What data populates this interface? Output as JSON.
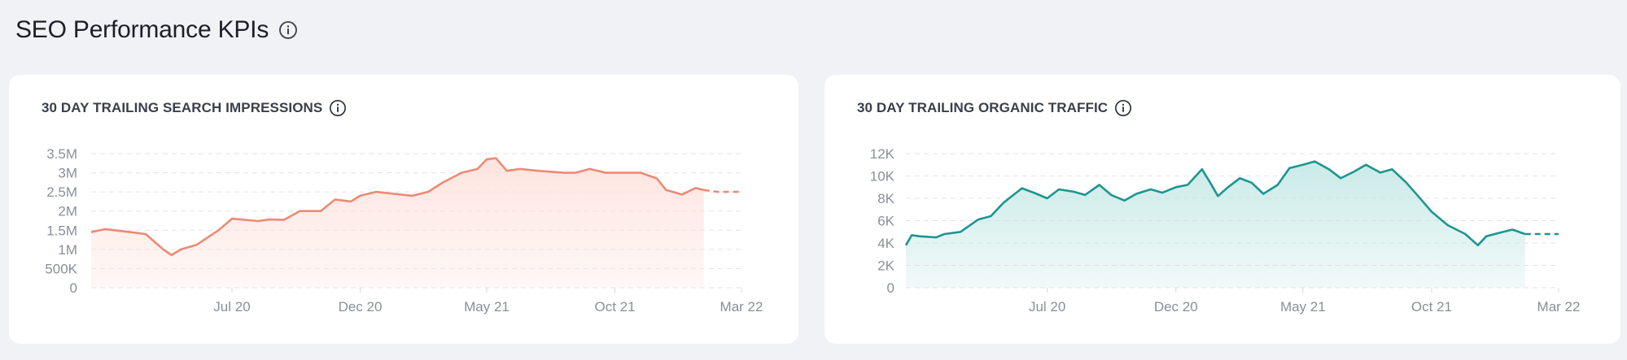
{
  "page": {
    "title": "SEO Performance KPIs",
    "info_icon": "info-icon"
  },
  "cards": [
    {
      "title": "30 DAY TRAILING SEARCH IMPRESSIONS",
      "info_icon": "info-icon"
    },
    {
      "title": "30 DAY TRAILING ORGANIC TRAFFIC",
      "info_icon": "info-icon"
    }
  ],
  "chart_data": [
    {
      "type": "area",
      "title": "30 DAY TRAILING SEARCH IMPRESSIONS",
      "color": "#ec8a76",
      "fill": "#fde3dd",
      "x_start": "2020-01-15",
      "x_end": "2022-03-01",
      "ylim": [
        0,
        3500000
      ],
      "yticks": [
        0,
        500000,
        1000000,
        1500000,
        2000000,
        2500000,
        3000000,
        3500000
      ],
      "ytick_labels": [
        "0",
        "500K",
        "1M",
        "1.5M",
        "2M",
        "2.5M",
        "3M",
        "3.5M"
      ],
      "xticks": [
        "2020-07-01",
        "2020-12-01",
        "2021-05-01",
        "2021-10-01",
        "2022-03-01"
      ],
      "xtick_labels": [
        "Jul 20",
        "Dec 20",
        "May 21",
        "Oct 21",
        "Mar 22"
      ],
      "grid": true,
      "forecast_from": "2022-01-15",
      "series": [
        {
          "x": [
            "2020-01-15",
            "2020-02-01",
            "2020-03-01",
            "2020-03-20",
            "2020-04-10",
            "2020-04-20",
            "2020-05-01",
            "2020-05-20",
            "2020-06-15",
            "2020-07-01",
            "2020-08-01",
            "2020-08-15",
            "2020-09-01",
            "2020-09-20",
            "2020-10-15",
            "2020-11-01",
            "2020-11-20",
            "2020-12-01",
            "2020-12-20",
            "2021-01-10",
            "2021-02-01",
            "2021-02-20",
            "2021-03-10",
            "2021-04-01",
            "2021-04-20",
            "2021-05-01",
            "2021-05-12",
            "2021-05-25",
            "2021-06-10",
            "2021-07-01",
            "2021-08-01",
            "2021-08-15",
            "2021-09-01",
            "2021-09-20",
            "2021-10-01",
            "2021-10-20",
            "2021-11-01",
            "2021-11-20",
            "2021-12-01",
            "2021-12-20",
            "2022-01-05",
            "2022-01-15",
            "2022-02-01",
            "2022-03-01"
          ],
          "y": [
            1450000,
            1530000,
            1450000,
            1400000,
            1000000,
            850000,
            1000000,
            1120000,
            1500000,
            1800000,
            1740000,
            1780000,
            1770000,
            2000000,
            2000000,
            2300000,
            2250000,
            2400000,
            2500000,
            2450000,
            2400000,
            2500000,
            2750000,
            3000000,
            3100000,
            3350000,
            3380000,
            3050000,
            3100000,
            3050000,
            3000000,
            3000000,
            3100000,
            3000000,
            3000000,
            3000000,
            3000000,
            2850000,
            2550000,
            2430000,
            2600000,
            2550000,
            2500000,
            2500000
          ]
        }
      ]
    },
    {
      "type": "area",
      "title": "30 DAY TRAILING ORGANIC TRAFFIC",
      "color": "#1e9591",
      "fill": "#c7e9e6",
      "x_start": "2020-01-15",
      "x_end": "2022-03-01",
      "ylim": [
        0,
        12000
      ],
      "yticks": [
        0,
        2000,
        4000,
        6000,
        8000,
        10000,
        12000
      ],
      "ytick_labels": [
        "0",
        "2K",
        "4K",
        "6K",
        "8K",
        "10K",
        "12K"
      ],
      "xticks": [
        "2020-07-01",
        "2020-12-01",
        "2021-05-01",
        "2021-10-01",
        "2022-03-01"
      ],
      "xtick_labels": [
        "Jul 20",
        "Dec 20",
        "May 21",
        "Oct 21",
        "Mar 22"
      ],
      "grid": true,
      "forecast_from": "2022-01-20",
      "series": [
        {
          "x": [
            "2020-01-15",
            "2020-01-22",
            "2020-02-01",
            "2020-02-20",
            "2020-03-01",
            "2020-03-20",
            "2020-04-10",
            "2020-04-25",
            "2020-05-10",
            "2020-06-01",
            "2020-06-15",
            "2020-07-01",
            "2020-07-15",
            "2020-08-01",
            "2020-08-15",
            "2020-09-01",
            "2020-09-15",
            "2020-10-01",
            "2020-10-15",
            "2020-11-01",
            "2020-11-15",
            "2020-12-01",
            "2020-12-15",
            "2021-01-01",
            "2021-01-10",
            "2021-01-20",
            "2021-02-01",
            "2021-02-15",
            "2021-03-01",
            "2021-03-15",
            "2021-04-01",
            "2021-04-15",
            "2021-05-01",
            "2021-05-15",
            "2021-06-01",
            "2021-06-15",
            "2021-07-01",
            "2021-07-15",
            "2021-08-01",
            "2021-08-15",
            "2021-09-01",
            "2021-09-15",
            "2021-10-01",
            "2021-10-20",
            "2021-11-10",
            "2021-11-25",
            "2021-12-05",
            "2021-12-20",
            "2022-01-05",
            "2022-01-20",
            "2022-02-01",
            "2022-03-01"
          ],
          "y": [
            3800,
            4700,
            4600,
            4500,
            4800,
            5000,
            6100,
            6400,
            7600,
            8900,
            8500,
            8000,
            8800,
            8600,
            8300,
            9200,
            8300,
            7800,
            8400,
            8800,
            8500,
            9000,
            9200,
            10600,
            9500,
            8200,
            9000,
            9800,
            9400,
            8400,
            9200,
            10700,
            11000,
            11300,
            10600,
            9800,
            10400,
            11000,
            10300,
            10600,
            9400,
            8200,
            6800,
            5600,
            4800,
            3800,
            4600,
            4900,
            5200,
            4800,
            4800,
            4800
          ]
        }
      ]
    }
  ]
}
